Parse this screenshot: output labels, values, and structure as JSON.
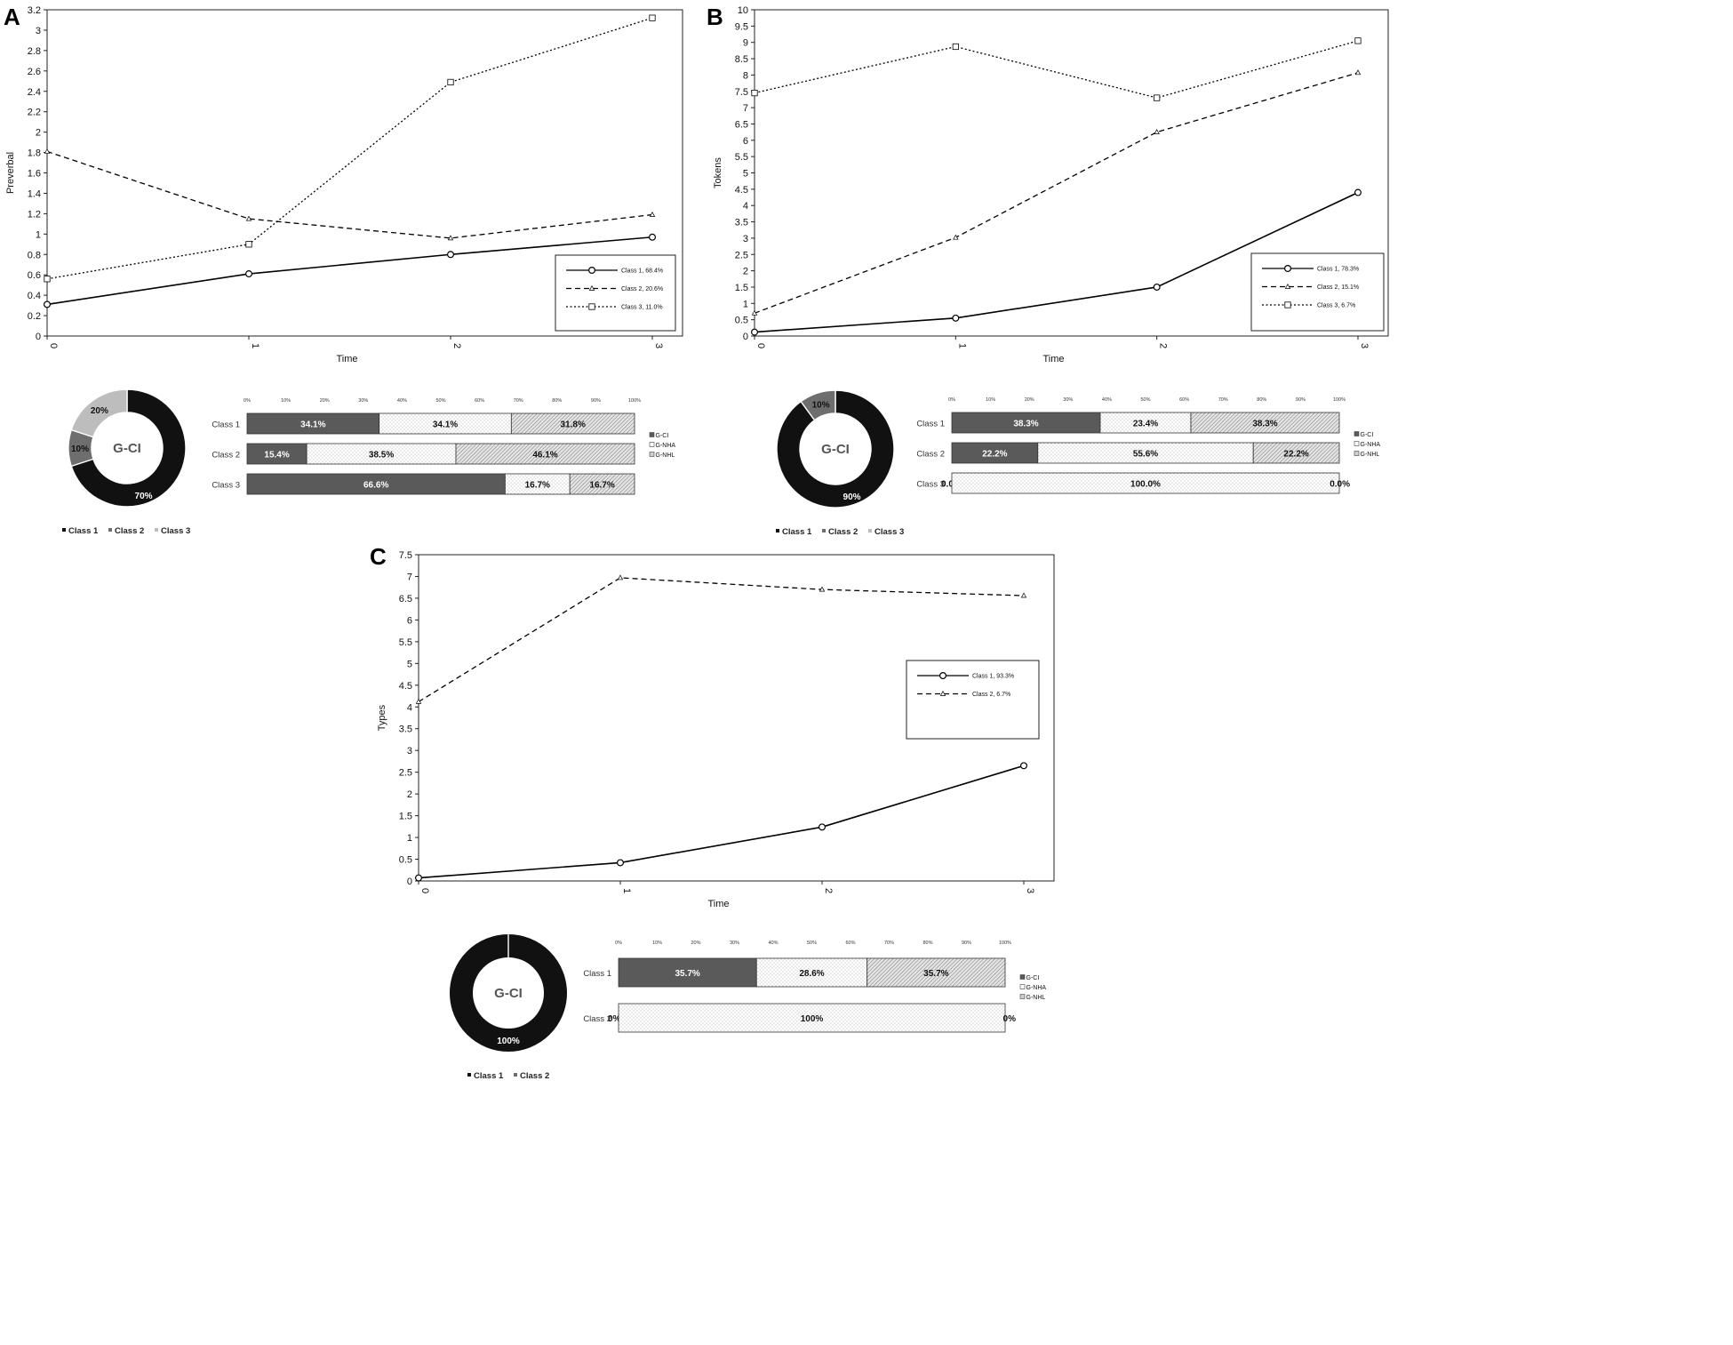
{
  "chart_data": [
    {
      "panel": "A",
      "type": "line",
      "xlabel": "Time",
      "ylabel": "Preverbal",
      "x": [
        0,
        1,
        2,
        3
      ],
      "ylim": [
        0,
        3.2
      ],
      "yticks": [
        "0",
        "0.2",
        "0.4",
        "0.6",
        "0.8",
        "1",
        "1.2",
        "1.4",
        "1.6",
        "1.8",
        "2",
        "2.2",
        "2.4",
        "2.6",
        "2.8",
        "3",
        "3.2"
      ],
      "series": [
        {
          "name": "Class 1, 68.4%",
          "marker": "circle",
          "dash": "solid",
          "values": [
            0.31,
            0.61,
            0.8,
            0.97
          ]
        },
        {
          "name": "Class 2, 20.6%",
          "marker": "triangle",
          "dash": "dashed",
          "values": [
            1.81,
            1.15,
            0.96,
            1.19
          ]
        },
        {
          "name": "Class 3, 11.0%",
          "marker": "square",
          "dash": "dotted",
          "values": [
            0.56,
            0.9,
            2.49,
            3.12
          ]
        }
      ],
      "legend": "bottom-right",
      "donut": {
        "center": "G-CI",
        "segments": [
          {
            "name": "Class 1",
            "value": 70,
            "label": "70%",
            "color": "#111111",
            "textColor": "#ffffff"
          },
          {
            "name": "Class 2",
            "value": 10,
            "label": "10%",
            "color": "#6e6e6e",
            "textColor": "#111111"
          },
          {
            "name": "Class 3",
            "value": 20,
            "label": "20%",
            "color": "#bdbdbd",
            "textColor": "#111111"
          }
        ],
        "legend": [
          "Class 1",
          "Class 2",
          "Class 3"
        ]
      },
      "stacked": {
        "pct_ticks": [
          "0%",
          "10%",
          "20%",
          "30%",
          "40%",
          "50%",
          "60%",
          "70%",
          "80%",
          "90%",
          "100%"
        ],
        "categories": [
          "G-CI",
          "G-NHA",
          "G-NHL"
        ],
        "rows": [
          {
            "name": "Class 1",
            "values": [
              34.1,
              34.1,
              31.8
            ],
            "labels": [
              "34.1%",
              "34.1%",
              "31.8%"
            ]
          },
          {
            "name": "Class 2",
            "values": [
              15.4,
              38.5,
              46.1
            ],
            "labels": [
              "15.4%",
              "38.5%",
              "46.1%"
            ]
          },
          {
            "name": "Class 3",
            "values": [
              66.6,
              16.7,
              16.7
            ],
            "labels": [
              "66.6%",
              "16.7%",
              "16.7%"
            ]
          }
        ]
      }
    },
    {
      "panel": "B",
      "type": "line",
      "xlabel": "Time",
      "ylabel": "Tokens",
      "x": [
        0,
        1,
        2,
        3
      ],
      "ylim": [
        0,
        10
      ],
      "yticks": [
        "0",
        "0.5",
        "1",
        "1.5",
        "2",
        "2.5",
        "3",
        "3.5",
        "4",
        "4.5",
        "5",
        "5.5",
        "6",
        "6.5",
        "7",
        "7.5",
        "8",
        "8.5",
        "9",
        "9.5",
        "10"
      ],
      "series": [
        {
          "name": "Class 1, 78.3%",
          "marker": "circle",
          "dash": "solid",
          "values": [
            0.12,
            0.55,
            1.5,
            4.4
          ]
        },
        {
          "name": "Class 2, 15.1%",
          "marker": "triangle",
          "dash": "dashed",
          "values": [
            0.7,
            3.02,
            6.25,
            8.07
          ]
        },
        {
          "name": "Class 3, 6.7%",
          "marker": "square",
          "dash": "dotted",
          "values": [
            7.45,
            8.87,
            7.3,
            9.05
          ]
        }
      ],
      "legend": "bottom-right",
      "donut": {
        "center": "G-CI",
        "segments": [
          {
            "name": "Class 1",
            "value": 90,
            "label": "90%",
            "color": "#111111",
            "textColor": "#ffffff"
          },
          {
            "name": "Class 2",
            "value": 10,
            "label": "10%",
            "color": "#6e6e6e",
            "textColor": "#111111"
          },
          {
            "name": "Class 3",
            "value": 0,
            "label": "",
            "color": "#bdbdbd",
            "textColor": "#111111"
          }
        ],
        "legend": [
          "Class 1",
          "Class 2",
          "Class 3"
        ]
      },
      "stacked": {
        "pct_ticks": [
          "0%",
          "10%",
          "20%",
          "30%",
          "40%",
          "50%",
          "60%",
          "70%",
          "80%",
          "90%",
          "100%"
        ],
        "categories": [
          "G-CI",
          "G-NHA",
          "G-NHL"
        ],
        "rows": [
          {
            "name": "Class 1",
            "values": [
              38.3,
              23.4,
              38.3
            ],
            "labels": [
              "38.3%",
              "23.4%",
              "38.3%"
            ]
          },
          {
            "name": "Class 2",
            "values": [
              22.2,
              55.6,
              22.2
            ],
            "labels": [
              "22.2%",
              "55.6%",
              "22.2%"
            ]
          },
          {
            "name": "Class 3",
            "values": [
              0.0,
              100.0,
              0.0
            ],
            "labels": [
              "0.0%",
              "100.0%",
              "0.0%"
            ]
          }
        ]
      }
    },
    {
      "panel": "C",
      "type": "line",
      "xlabel": "Time",
      "ylabel": "Types",
      "x": [
        0,
        1,
        2,
        3
      ],
      "ylim": [
        0,
        7.5
      ],
      "yticks": [
        "0",
        "0.5",
        "1",
        "1.5",
        "2",
        "2.5",
        "3",
        "3.5",
        "4",
        "4.5",
        "5",
        "5.5",
        "6",
        "6.5",
        "7",
        "7.5"
      ],
      "series": [
        {
          "name": "Class 1, 93.3%",
          "marker": "circle",
          "dash": "solid",
          "values": [
            0.07,
            0.42,
            1.24,
            2.65
          ]
        },
        {
          "name": "Class 2, 6.7%",
          "marker": "triangle",
          "dash": "dashed",
          "values": [
            4.12,
            6.97,
            6.7,
            6.56
          ]
        }
      ],
      "legend": "right",
      "donut": {
        "center": "G-CI",
        "segments": [
          {
            "name": "Class 1",
            "value": 100,
            "label": "100%",
            "color": "#111111",
            "textColor": "#ffffff"
          },
          {
            "name": "Class 2",
            "value": 0,
            "label": "",
            "color": "#6e6e6e",
            "textColor": "#111111"
          }
        ],
        "legend": [
          "Class 1",
          "Class 2"
        ]
      },
      "stacked": {
        "pct_ticks": [
          "0%",
          "10%",
          "20%",
          "30%",
          "40%",
          "50%",
          "60%",
          "70%",
          "80%",
          "90%",
          "100%"
        ],
        "categories": [
          "G-CI",
          "G-NHA",
          "G-NHL"
        ],
        "rows": [
          {
            "name": "Class 1",
            "values": [
              35.7,
              28.6,
              35.7
            ],
            "labels": [
              "35.7%",
              "28.6%",
              "35.7%"
            ]
          },
          {
            "name": "Class 2",
            "values": [
              0,
              100,
              0
            ],
            "labels": [
              "0%",
              "100%",
              "0%"
            ]
          }
        ]
      }
    }
  ]
}
